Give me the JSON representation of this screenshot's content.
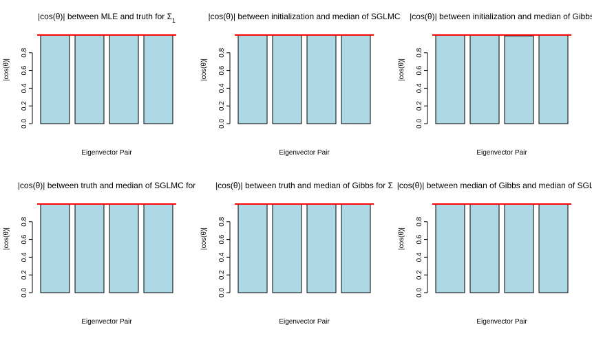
{
  "chart_data": [
    {
      "type": "bar",
      "title": "|cos(θ)| between MLE and truth for Σ",
      "title_sub": "1",
      "xlabel": "Eigenvector Pair",
      "ylabel": "|cos(θ)|",
      "categories": [
        "",
        "",
        "",
        ""
      ],
      "values": [
        1.0,
        1.0,
        1.0,
        1.0
      ],
      "ylim": [
        0,
        1.0
      ],
      "yticks": [
        "0.0",
        "0.2",
        "0.4",
        "0.6",
        "0.8"
      ],
      "reference_line": 1.0,
      "bar_color": "#add8e6",
      "line_color": "#ff0000"
    },
    {
      "type": "bar",
      "title": "|cos(θ)| between initialization and median of SGLMC",
      "xlabel": "Eigenvector Pair",
      "ylabel": "|cos(θ)|",
      "categories": [
        "",
        "",
        "",
        ""
      ],
      "values": [
        1.0,
        1.0,
        1.0,
        1.0
      ],
      "ylim": [
        0,
        1.0
      ],
      "yticks": [
        "0.0",
        "0.2",
        "0.4",
        "0.6",
        "0.8"
      ],
      "reference_line": 1.0,
      "bar_color": "#add8e6",
      "line_color": "#ff0000"
    },
    {
      "type": "bar",
      "title": "|cos(θ)| between initialization and median of Gibbs",
      "xlabel": "Eigenvector Pair",
      "ylabel": "|cos(θ)|",
      "categories": [
        "",
        "",
        "",
        ""
      ],
      "values": [
        1.0,
        1.0,
        0.99,
        1.0
      ],
      "ylim": [
        0,
        1.0
      ],
      "yticks": [
        "0.0",
        "0.2",
        "0.4",
        "0.6",
        "0.8"
      ],
      "reference_line": 1.0,
      "bar_color": "#add8e6",
      "line_color": "#ff0000"
    },
    {
      "type": "bar",
      "title": "|cos(θ)| between truth and median of SGLMC for",
      "xlabel": "Eigenvector Pair",
      "ylabel": "|cos(θ)|",
      "categories": [
        "",
        "",
        "",
        ""
      ],
      "values": [
        1.0,
        1.0,
        1.0,
        1.0
      ],
      "ylim": [
        0,
        1.0
      ],
      "yticks": [
        "0.0",
        "0.2",
        "0.4",
        "0.6",
        "0.8"
      ],
      "reference_line": 1.0,
      "bar_color": "#add8e6",
      "line_color": "#ff0000"
    },
    {
      "type": "bar",
      "title": "|cos(θ)| between truth and median of Gibbs for Σ",
      "xlabel": "Eigenvector Pair",
      "ylabel": "|cos(θ)|",
      "categories": [
        "",
        "",
        "",
        ""
      ],
      "values": [
        1.0,
        1.0,
        1.0,
        1.0
      ],
      "ylim": [
        0,
        1.0
      ],
      "yticks": [
        "0.0",
        "0.2",
        "0.4",
        "0.6",
        "0.8"
      ],
      "reference_line": 1.0,
      "bar_color": "#add8e6",
      "line_color": "#ff0000"
    },
    {
      "type": "bar",
      "title": "|cos(θ)| between median of Gibbs and median of SGLMC",
      "xlabel": "Eigenvector Pair",
      "ylabel": "|cos(θ)|",
      "categories": [
        "",
        "",
        "",
        ""
      ],
      "values": [
        1.0,
        1.0,
        1.0,
        1.0
      ],
      "ylim": [
        0,
        1.0
      ],
      "yticks": [
        "0.0",
        "0.2",
        "0.4",
        "0.6",
        "0.8"
      ],
      "reference_line": 1.0,
      "bar_color": "#add8e6",
      "line_color": "#ff0000"
    }
  ]
}
